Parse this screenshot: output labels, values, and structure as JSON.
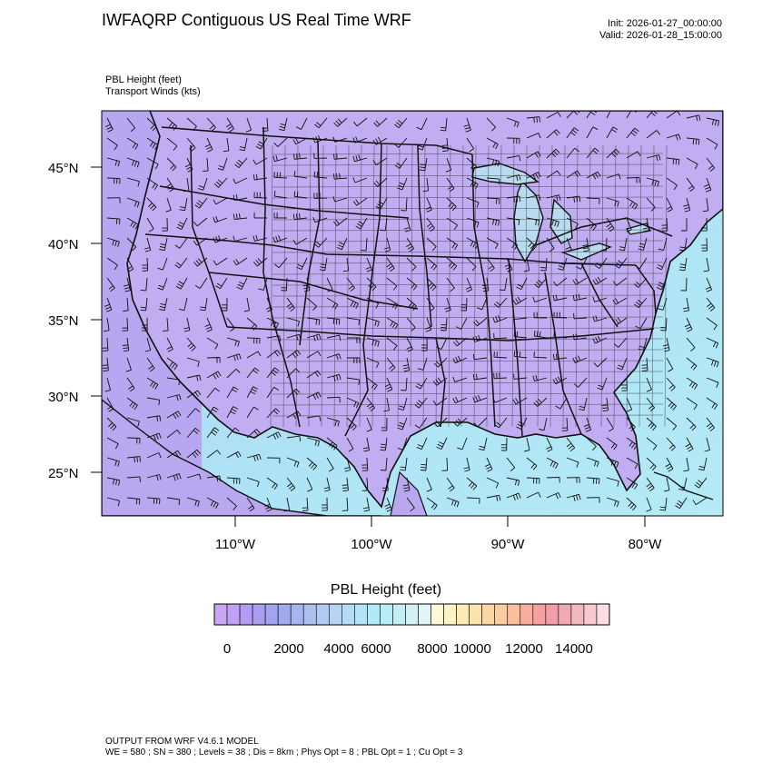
{
  "header": {
    "title": "IWFAQRP Contiguous US Real Time WRF",
    "init": "Init: 2026-01-27_00:00:00",
    "valid": "Valid: 2026-01-28_15:00:00"
  },
  "variables": {
    "line1": "PBL Height   (feet)",
    "line2": "Transport Winds   (kts)"
  },
  "map": {
    "lat_labels": [
      "45°N",
      "40°N",
      "35°N",
      "30°N",
      "25°N"
    ],
    "lon_labels": [
      "110°W",
      "100°W",
      "90°W",
      "80°W"
    ],
    "land_color": "#c2aef2",
    "ocean_color": "#a8e6f4",
    "lake_color": "#b8dbef"
  },
  "colorbar": {
    "title": "PBL Height  (feet)",
    "tick_labels": [
      "0",
      "2000",
      "4000",
      "6000",
      "8000",
      "10000",
      "12000",
      "14000"
    ],
    "colors": [
      "#c9a7f2",
      "#bfa2f4",
      "#b49cf3",
      "#aa9ef0",
      "#a1a4ef",
      "#9faaef",
      "#a7b5ef",
      "#adc1f0",
      "#b3cbf2",
      "#b5d4f3",
      "#b5dcf5",
      "#b2e3f6",
      "#b0e9f7",
      "#b8ecf6",
      "#c5eff6",
      "#d3f2f6",
      "#e1f4f6",
      "#fff8d6",
      "#fdf2c2",
      "#fcebb5",
      "#fce2ab",
      "#fcd6a3",
      "#fccb9e",
      "#fcbf9e",
      "#f9ad9e",
      "#f7a0a2",
      "#f49ca8",
      "#f0a8b2",
      "#f2b8c0",
      "#f6c9cf",
      "#fbdde2"
    ]
  },
  "footer": {
    "line1": "OUTPUT FROM WRF V4.6.1 MODEL",
    "line2": "WE = 580 ; SN = 380 ; Levels = 38 ; Dis = 8km ; Phys Opt = 8 ; PBL Opt = 1 ; Cu Opt = 3"
  }
}
